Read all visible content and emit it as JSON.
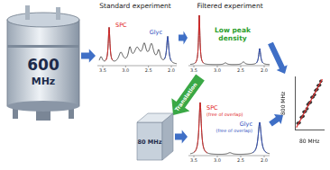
{
  "magnet": {
    "label": [
      "600",
      "MHz"
    ]
  },
  "standard": {
    "title": "Standard experiment",
    "peaks": [
      {
        "label": "SPC",
        "color": "#e02020"
      },
      {
        "label": "Glyc",
        "color": "#3050c0"
      }
    ],
    "ticks": [
      "3.5",
      "3.0",
      "2.5",
      "2.0"
    ]
  },
  "filtered": {
    "title": "Filtered experiment",
    "note": [
      "Low peak",
      "density"
    ],
    "note_color": "#2ca02c",
    "ticks": [
      "3.5",
      "3.0",
      "2.5",
      "2.0"
    ]
  },
  "translation": {
    "label": "Translation",
    "color": "#3aa845"
  },
  "cube": {
    "label": "80 MHz"
  },
  "translated": {
    "peaks": [
      {
        "label": [
          "SPC",
          "(free of overlap)"
        ],
        "color": "#e02020"
      },
      {
        "label": [
          "Glyc",
          "(free of overlap)"
        ],
        "color": "#3050c0"
      }
    ],
    "ticks": [
      "3.5",
      "3.0",
      "2.5",
      "2.0"
    ]
  },
  "chart_data": {
    "type": "scatter",
    "x_label": "80 MHz",
    "y_label": "800 MHz",
    "x": [
      1.0,
      1.5,
      2.2,
      2.8,
      3.1,
      3.6,
      4.2,
      4.5,
      5.0,
      5.4,
      5.9,
      6.3,
      6.8,
      7.2,
      7.7,
      8.1,
      8.6,
      9.0
    ],
    "y": [
      1.3,
      1.4,
      2.4,
      2.6,
      3.4,
      3.5,
      4.0,
      4.8,
      5.1,
      5.2,
      6.1,
      6.2,
      6.6,
      7.4,
      7.6,
      8.3,
      8.4,
      9.1
    ],
    "color": "#333333",
    "fit": {
      "x": [
        0.5,
        9.5
      ],
      "y": [
        0.5,
        9.5
      ],
      "color": "#e03030"
    },
    "xlim": [
      0,
      10
    ],
    "ylim": [
      0,
      10
    ],
    "tick_labels": false,
    "grid": false
  }
}
